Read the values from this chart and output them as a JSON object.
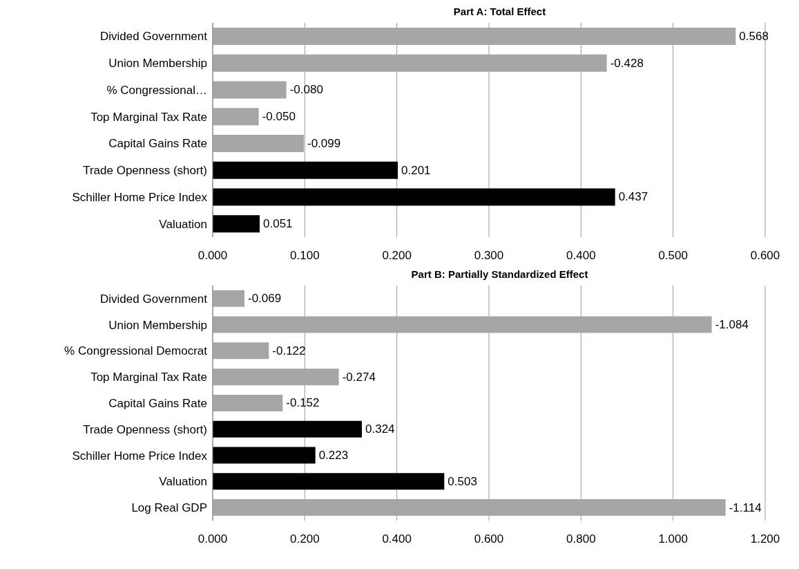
{
  "chart_data": [
    {
      "type": "bar",
      "orientation": "horizontal",
      "title": "Part A: Total Effect",
      "categories": [
        "Divided Government",
        "Union Membership",
        "% Congressional…",
        "Top Marginal Tax Rate",
        "Capital Gains Rate",
        "Trade Openness (short)",
        "Schiller Home Price Index",
        "Valuation"
      ],
      "values": [
        0.568,
        -0.428,
        -0.08,
        -0.05,
        -0.099,
        0.201,
        0.437,
        0.051
      ],
      "base": [
        0,
        0.428,
        0.08,
        0.05,
        0.099,
        0,
        0,
        0
      ],
      "value_labels": [
        "0.568",
        "-0.428",
        "-0.080",
        "-0.050",
        "-0.099",
        "0.201",
        "0.437",
        "0.051"
      ],
      "colors": [
        "#a6a6a6",
        "#a6a6a6",
        "#a6a6a6",
        "#a6a6a6",
        "#a6a6a6",
        "#000000",
        "#000000",
        "#000000"
      ],
      "xlim": [
        0,
        0.6
      ],
      "xticks": [
        {
          "value": 0,
          "label": "0.000"
        },
        {
          "value": 0.1,
          "label": "0.100"
        },
        {
          "value": 0.2,
          "label": "0.200"
        },
        {
          "value": 0.3,
          "label": "0.300"
        },
        {
          "value": 0.4,
          "label": "0.400"
        },
        {
          "value": 0.5,
          "label": "0.500"
        },
        {
          "value": 0.6,
          "label": "0.600"
        }
      ],
      "grid": "x"
    },
    {
      "type": "bar",
      "orientation": "horizontal",
      "title": "Part B: Partially Standardized Effect",
      "categories": [
        "Divided Government",
        "Union Membership",
        "% Congressional Democrat",
        "Top Marginal Tax Rate",
        "Capital Gains Rate",
        "Trade Openness (short)",
        "Schiller Home Price Index",
        "Valuation",
        "Log Real GDP"
      ],
      "values": [
        -0.069,
        -1.084,
        -0.122,
        -0.274,
        -0.152,
        0.324,
        0.223,
        0.503,
        -1.114
      ],
      "base": [
        0.069,
        1.084,
        0.122,
        0.274,
        0.152,
        0,
        0,
        0,
        1.114
      ],
      "value_labels": [
        "-0.069",
        "-1.084",
        "-0.122",
        "-0.274",
        "-0.152",
        "0.324",
        "0.223",
        "0.503",
        "-1.114"
      ],
      "colors": [
        "#a6a6a6",
        "#a6a6a6",
        "#a6a6a6",
        "#a6a6a6",
        "#a6a6a6",
        "#000000",
        "#000000",
        "#000000",
        "#a6a6a6"
      ],
      "xlim": [
        0,
        1.2
      ],
      "xticks": [
        {
          "value": 0,
          "label": "0.000"
        },
        {
          "value": 0.2,
          "label": "0.200"
        },
        {
          "value": 0.4,
          "label": "0.400"
        },
        {
          "value": 0.6,
          "label": "0.600"
        },
        {
          "value": 0.8,
          "label": "0.800"
        },
        {
          "value": 1.0,
          "label": "1.000"
        },
        {
          "value": 1.2,
          "label": "1.200"
        }
      ],
      "grid": "x"
    }
  ]
}
